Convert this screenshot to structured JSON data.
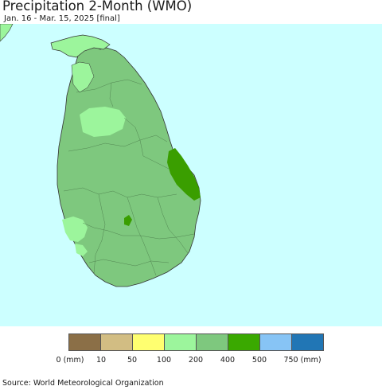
{
  "header": {
    "title": "Precipitation 2-Month (WMO)",
    "subtitle": "Jan. 16 - Mar. 15, 2025 [final]"
  },
  "map": {
    "region": "Sri Lanka",
    "ocean_color": "#ccffff",
    "zones": [
      {
        "category": "200-400",
        "color": "#7ec87e",
        "area": "most of island"
      },
      {
        "category": "100-200",
        "color": "#9cf59c",
        "area": "north peninsula and north-central"
      },
      {
        "category": "100-200",
        "color": "#9cf59c",
        "area": "southwest coast patch"
      },
      {
        "category": "400-500",
        "color": "#3a9e00",
        "area": "central east coast"
      },
      {
        "category": "400-500",
        "color": "#3a9e00",
        "area": "small central highland spot"
      }
    ]
  },
  "legend": {
    "colors": [
      "#8b6f47",
      "#d2bd83",
      "#ffff70",
      "#9cf59c",
      "#7ec87e",
      "#3aa900",
      "#87c4f5",
      "#2176b5"
    ],
    "labels": [
      "0 (mm)",
      "10",
      "50",
      "100",
      "200",
      "400",
      "500",
      "750 (mm)"
    ]
  },
  "footer": {
    "source": "Source: World Meteorological Organization"
  }
}
